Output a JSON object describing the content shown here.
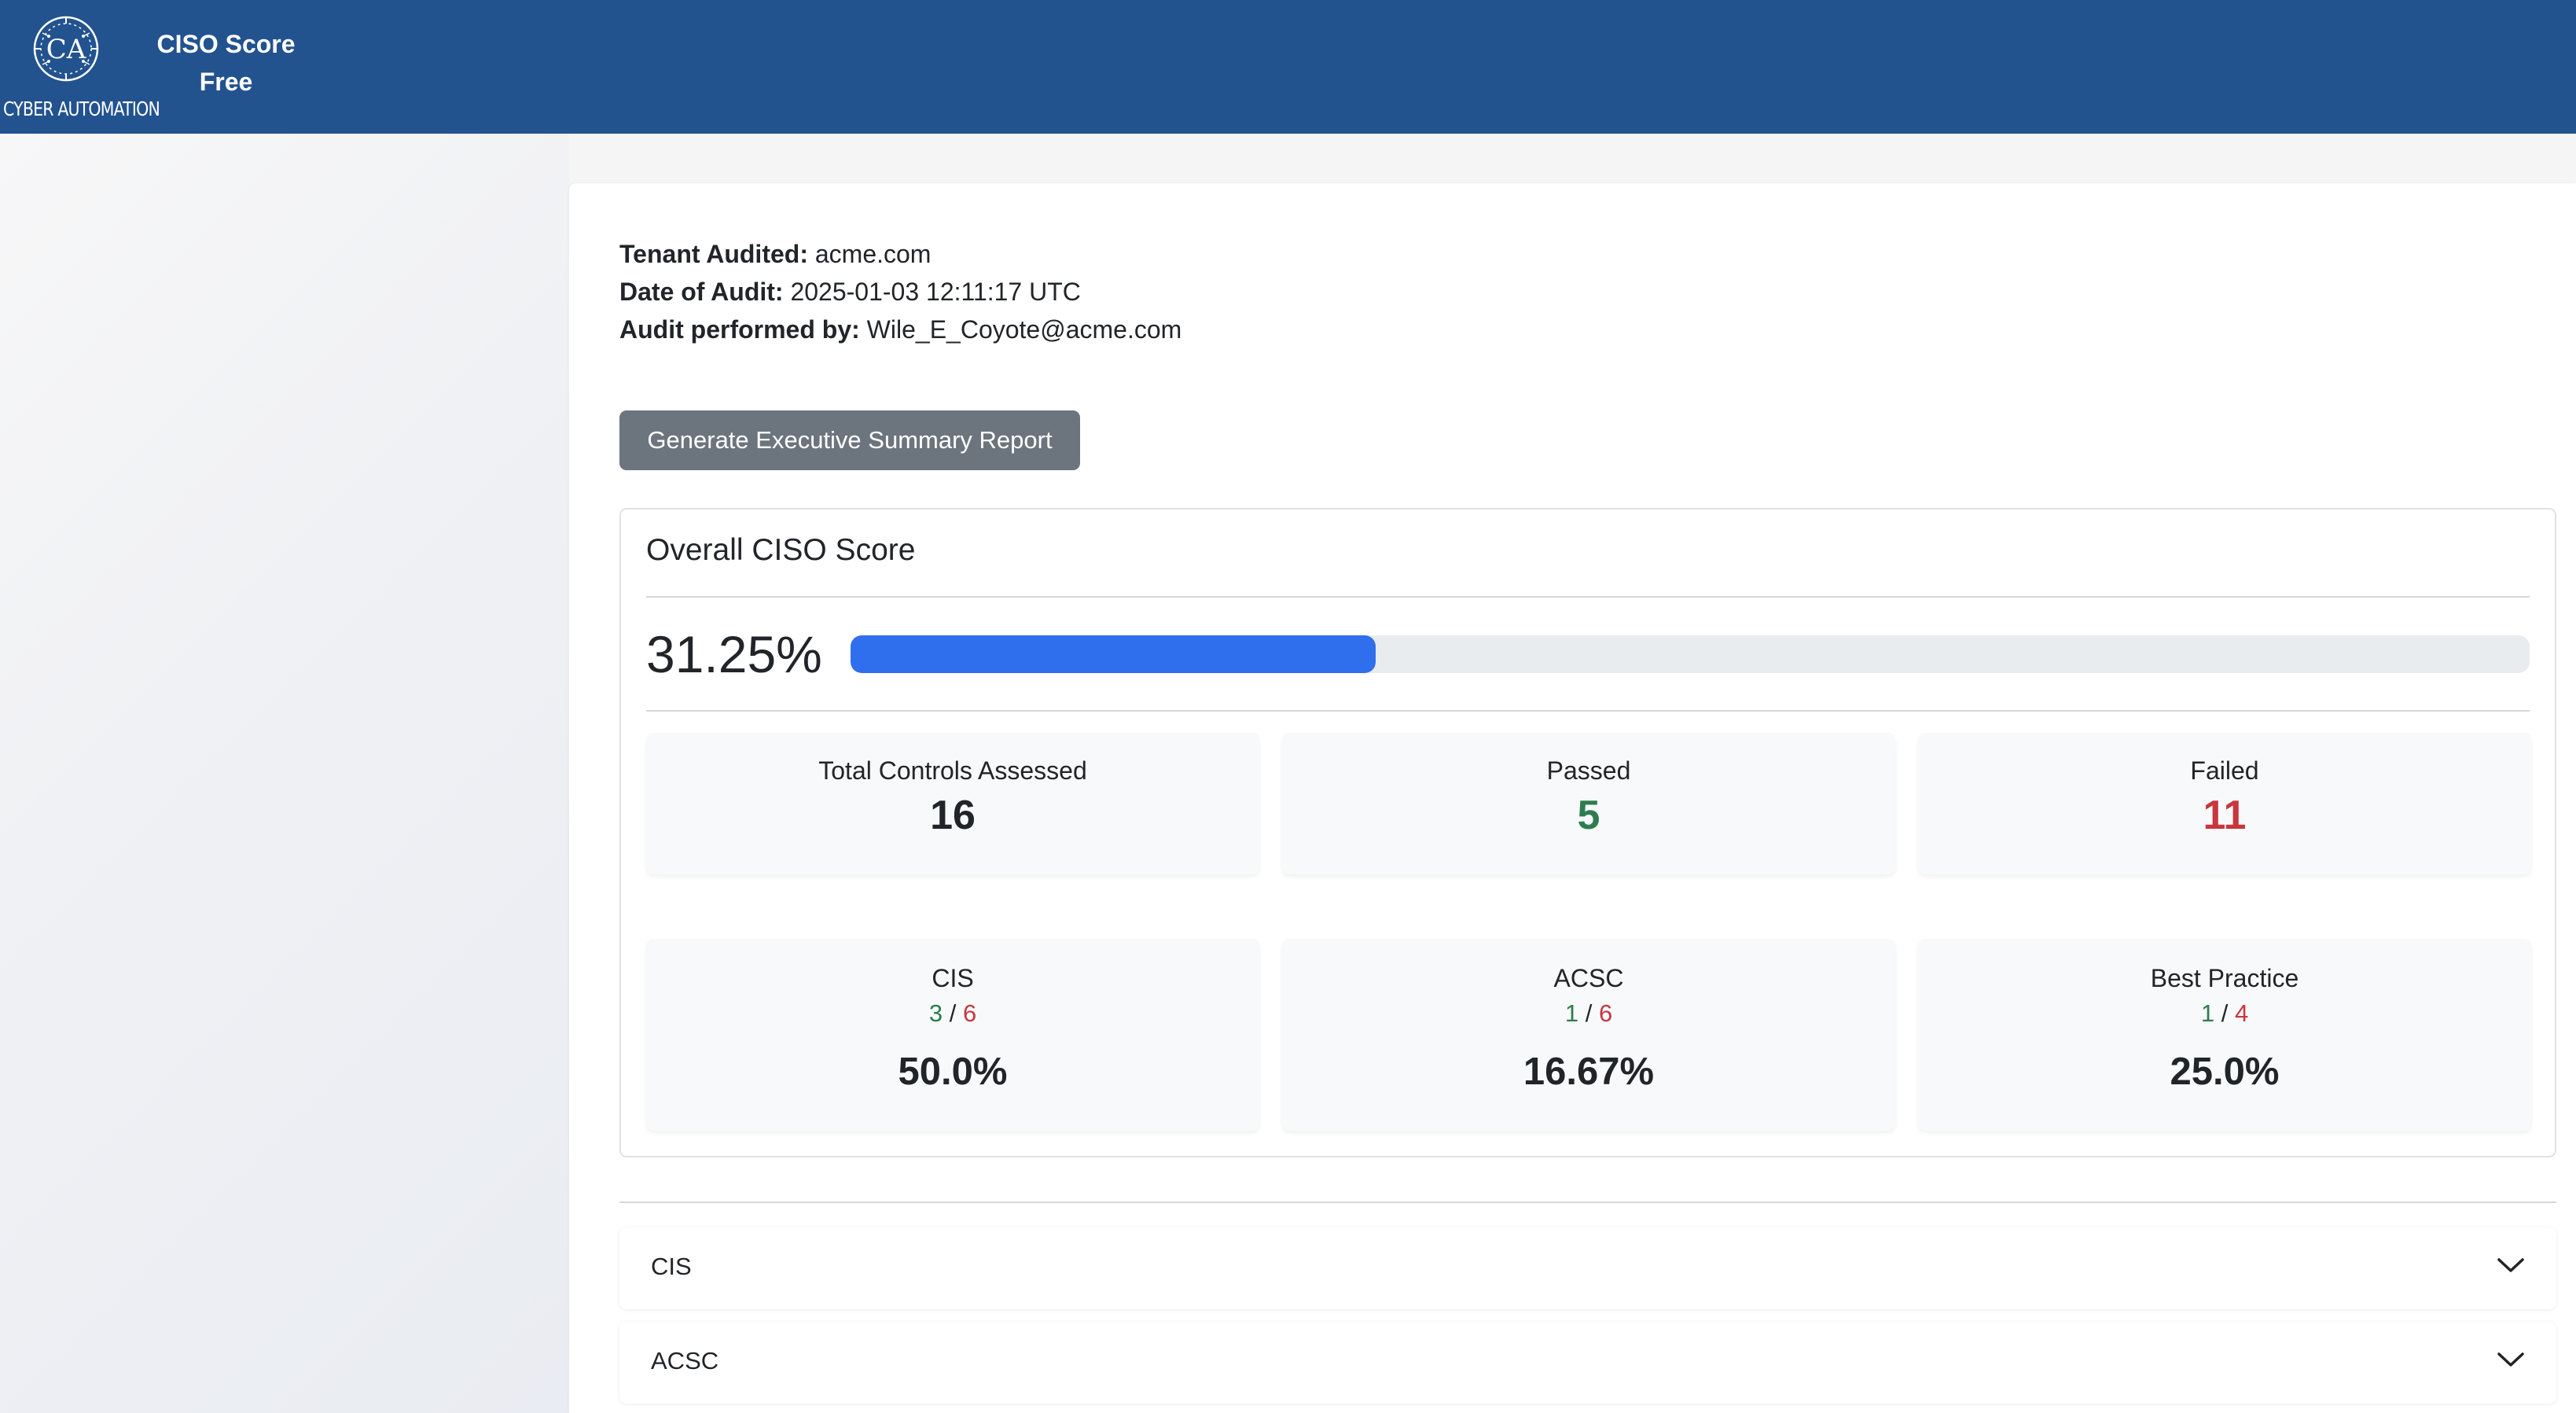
{
  "header": {
    "logo_text": "CYBER AUTOMATION",
    "logo_monogram": "CA",
    "brand_line1": "CISO Score",
    "brand_line2": "Free",
    "bg_color": "#22538f"
  },
  "audit": {
    "tenant_label": "Tenant Audited:",
    "tenant_value": "acme.com",
    "date_label": "Date of Audit:",
    "date_value": "2025-01-03 12:11:17 UTC",
    "performer_label": "Audit performed by:",
    "performer_value": "Wile_E_Coyote@acme.com"
  },
  "actions": {
    "generate_report_label": "Generate Executive Summary Report"
  },
  "overall": {
    "title": "Overall CISO Score",
    "score_text": "31.25%",
    "progress_fraction": 0.3125,
    "progress_color": "#2f6fee"
  },
  "summary": {
    "total_label": "Total Controls Assessed",
    "total_value": "16",
    "passed_label": "Passed",
    "passed_value": "5",
    "failed_label": "Failed",
    "failed_value": "11",
    "passed_color": "#2e7d4f",
    "failed_color": "#c8363e"
  },
  "frameworks": [
    {
      "name": "CIS",
      "passed": "3",
      "separator": "/",
      "total": "6",
      "percent": "50.0%"
    },
    {
      "name": "ACSC",
      "passed": "1",
      "separator": "/",
      "total": "6",
      "percent": "16.67%"
    },
    {
      "name": "Best Practice",
      "passed": "1",
      "separator": "/",
      "total": "4",
      "percent": "25.0%"
    }
  ],
  "sections": [
    {
      "label": "CIS",
      "icon": "chevron-down-icon"
    },
    {
      "label": "ACSC",
      "icon": "chevron-down-icon"
    }
  ]
}
